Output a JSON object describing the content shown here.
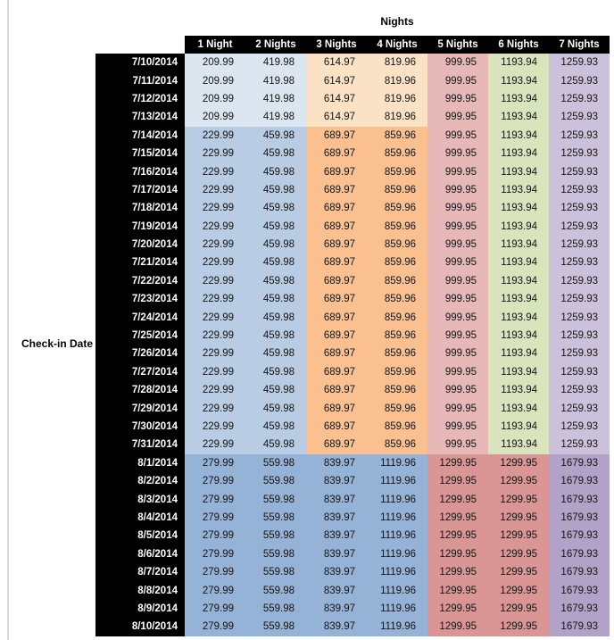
{
  "chart_data": {
    "type": "table",
    "title": "Nights",
    "row_axis_label": "Check-in Date",
    "columns": [
      "1 Night",
      "2 Nights",
      "3 Nights",
      "4 Nights",
      "5 Nights",
      "6 Nights",
      "7 Nights"
    ],
    "palette": {
      "header_bg": "#000000",
      "header_text": "#ffffff",
      "band_a": [
        "#DCE6F1",
        "#DCE6F1",
        "#FBE2C5",
        "#FBE2C5",
        "#E6B8B7",
        "#D7E4BC",
        "#CCC1DA"
      ],
      "band_b": [
        "#B8CCE4",
        "#B8CCE4",
        "#FAC090",
        "#FAC090",
        "#E6B8B7",
        "#D7E4BC",
        "#CCC1DA"
      ],
      "band_c": [
        "#95B3D7",
        "#95B3D7",
        "#95B3D7",
        "#95B3D7",
        "#D99694",
        "#D99694",
        "#B3A2C7"
      ]
    },
    "rows": [
      {
        "date": "7/10/2014",
        "band": "band_a",
        "values": [
          "209.99",
          "419.98",
          "614.97",
          "819.96",
          "999.95",
          "1193.94",
          "1259.93"
        ]
      },
      {
        "date": "7/11/2014",
        "band": "band_a",
        "values": [
          "209.99",
          "419.98",
          "614.97",
          "819.96",
          "999.95",
          "1193.94",
          "1259.93"
        ]
      },
      {
        "date": "7/12/2014",
        "band": "band_a",
        "values": [
          "209.99",
          "419.98",
          "614.97",
          "819.96",
          "999.95",
          "1193.94",
          "1259.93"
        ]
      },
      {
        "date": "7/13/2014",
        "band": "band_a",
        "values": [
          "209.99",
          "419.98",
          "614.97",
          "819.96",
          "999.95",
          "1193.94",
          "1259.93"
        ]
      },
      {
        "date": "7/14/2014",
        "band": "band_b",
        "values": [
          "229.99",
          "459.98",
          "689.97",
          "859.96",
          "999.95",
          "1193.94",
          "1259.93"
        ]
      },
      {
        "date": "7/15/2014",
        "band": "band_b",
        "values": [
          "229.99",
          "459.98",
          "689.97",
          "859.96",
          "999.95",
          "1193.94",
          "1259.93"
        ]
      },
      {
        "date": "7/16/2014",
        "band": "band_b",
        "values": [
          "229.99",
          "459.98",
          "689.97",
          "859.96",
          "999.95",
          "1193.94",
          "1259.93"
        ]
      },
      {
        "date": "7/17/2014",
        "band": "band_b",
        "values": [
          "229.99",
          "459.98",
          "689.97",
          "859.96",
          "999.95",
          "1193.94",
          "1259.93"
        ]
      },
      {
        "date": "7/18/2014",
        "band": "band_b",
        "values": [
          "229.99",
          "459.98",
          "689.97",
          "859.96",
          "999.95",
          "1193.94",
          "1259.93"
        ]
      },
      {
        "date": "7/19/2014",
        "band": "band_b",
        "values": [
          "229.99",
          "459.98",
          "689.97",
          "859.96",
          "999.95",
          "1193.94",
          "1259.93"
        ]
      },
      {
        "date": "7/20/2014",
        "band": "band_b",
        "values": [
          "229.99",
          "459.98",
          "689.97",
          "859.96",
          "999.95",
          "1193.94",
          "1259.93"
        ]
      },
      {
        "date": "7/21/2014",
        "band": "band_b",
        "values": [
          "229.99",
          "459.98",
          "689.97",
          "859.96",
          "999.95",
          "1193.94",
          "1259.93"
        ]
      },
      {
        "date": "7/22/2014",
        "band": "band_b",
        "values": [
          "229.99",
          "459.98",
          "689.97",
          "859.96",
          "999.95",
          "1193.94",
          "1259.93"
        ]
      },
      {
        "date": "7/23/2014",
        "band": "band_b",
        "values": [
          "229.99",
          "459.98",
          "689.97",
          "859.96",
          "999.95",
          "1193.94",
          "1259.93"
        ]
      },
      {
        "date": "7/24/2014",
        "band": "band_b",
        "values": [
          "229.99",
          "459.98",
          "689.97",
          "859.96",
          "999.95",
          "1193.94",
          "1259.93"
        ]
      },
      {
        "date": "7/25/2014",
        "band": "band_b",
        "values": [
          "229.99",
          "459.98",
          "689.97",
          "859.96",
          "999.95",
          "1193.94",
          "1259.93"
        ]
      },
      {
        "date": "7/26/2014",
        "band": "band_b",
        "values": [
          "229.99",
          "459.98",
          "689.97",
          "859.96",
          "999.95",
          "1193.94",
          "1259.93"
        ]
      },
      {
        "date": "7/27/2014",
        "band": "band_b",
        "values": [
          "229.99",
          "459.98",
          "689.97",
          "859.96",
          "999.95",
          "1193.94",
          "1259.93"
        ]
      },
      {
        "date": "7/28/2014",
        "band": "band_b",
        "values": [
          "229.99",
          "459.98",
          "689.97",
          "859.96",
          "999.95",
          "1193.94",
          "1259.93"
        ]
      },
      {
        "date": "7/29/2014",
        "band": "band_b",
        "values": [
          "229.99",
          "459.98",
          "689.97",
          "859.96",
          "999.95",
          "1193.94",
          "1259.93"
        ]
      },
      {
        "date": "7/30/2014",
        "band": "band_b",
        "values": [
          "229.99",
          "459.98",
          "689.97",
          "859.96",
          "999.95",
          "1193.94",
          "1259.93"
        ]
      },
      {
        "date": "7/31/2014",
        "band": "band_b",
        "values": [
          "229.99",
          "459.98",
          "689.97",
          "859.96",
          "999.95",
          "1193.94",
          "1259.93"
        ]
      },
      {
        "date": "8/1/2014",
        "band": "band_c",
        "values": [
          "279.99",
          "559.98",
          "839.97",
          "1119.96",
          "1299.95",
          "1299.95",
          "1679.93"
        ]
      },
      {
        "date": "8/2/2014",
        "band": "band_c",
        "values": [
          "279.99",
          "559.98",
          "839.97",
          "1119.96",
          "1299.95",
          "1299.95",
          "1679.93"
        ]
      },
      {
        "date": "8/3/2014",
        "band": "band_c",
        "values": [
          "279.99",
          "559.98",
          "839.97",
          "1119.96",
          "1299.95",
          "1299.95",
          "1679.93"
        ]
      },
      {
        "date": "8/4/2014",
        "band": "band_c",
        "values": [
          "279.99",
          "559.98",
          "839.97",
          "1119.96",
          "1299.95",
          "1299.95",
          "1679.93"
        ]
      },
      {
        "date": "8/5/2014",
        "band": "band_c",
        "values": [
          "279.99",
          "559.98",
          "839.97",
          "1119.96",
          "1299.95",
          "1299.95",
          "1679.93"
        ]
      },
      {
        "date": "8/6/2014",
        "band": "band_c",
        "values": [
          "279.99",
          "559.98",
          "839.97",
          "1119.96",
          "1299.95",
          "1299.95",
          "1679.93"
        ]
      },
      {
        "date": "8/7/2014",
        "band": "band_c",
        "values": [
          "279.99",
          "559.98",
          "839.97",
          "1119.96",
          "1299.95",
          "1299.95",
          "1679.93"
        ]
      },
      {
        "date": "8/8/2014",
        "band": "band_c",
        "values": [
          "279.99",
          "559.98",
          "839.97",
          "1119.96",
          "1299.95",
          "1299.95",
          "1679.93"
        ]
      },
      {
        "date": "8/9/2014",
        "band": "band_c",
        "values": [
          "279.99",
          "559.98",
          "839.97",
          "1119.96",
          "1299.95",
          "1299.95",
          "1679.93"
        ]
      },
      {
        "date": "8/10/2014",
        "band": "band_c",
        "values": [
          "279.99",
          "559.98",
          "839.97",
          "1119.96",
          "1299.95",
          "1299.95",
          "1679.93"
        ]
      }
    ]
  }
}
